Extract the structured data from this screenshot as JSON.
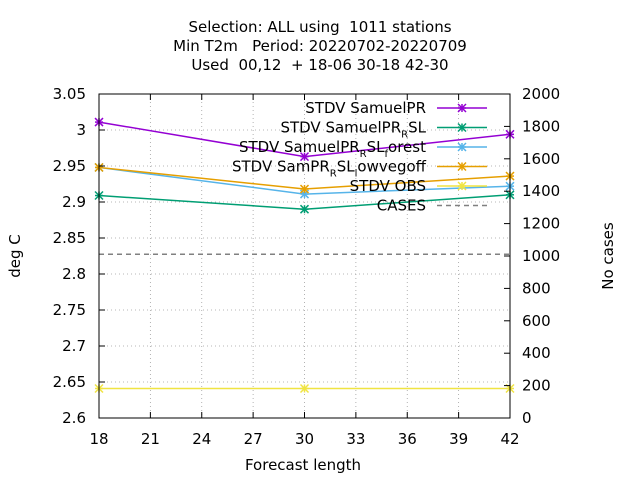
{
  "chart_data": {
    "type": "line",
    "title_lines": [
      "Selection: ALL using  1011 stations",
      "Min T2m   Period: 20220702-20220709",
      "Used  00,12  + 18-06 30-18 42-30"
    ],
    "xlabel": "Forecast length",
    "ylabel": "deg C",
    "y2label": "No cases",
    "x": [
      18,
      30,
      42
    ],
    "xlim": [
      18,
      42
    ],
    "xticks": [
      "18",
      "21",
      "24",
      "27",
      "30",
      "33",
      "36",
      "39",
      "42"
    ],
    "ylim": [
      2.6,
      3.05
    ],
    "yticks": [
      "2.6",
      "2.65",
      "2.7",
      "2.75",
      "2.8",
      "2.85",
      "2.9",
      "2.95",
      "3",
      "3.05"
    ],
    "y2lim": [
      0,
      2000
    ],
    "y2ticks": [
      "0",
      "200",
      "400",
      "600",
      "800",
      "1000",
      "1200",
      "1400",
      "1600",
      "1800",
      "2000"
    ],
    "grid": true,
    "legend_position": "top-right",
    "series": [
      {
        "name": "STDV SamuelPR",
        "name_main": "STDV SamuelPR",
        "name_sub": "",
        "name_rest": "",
        "color": "#9400d3",
        "marker": "x",
        "values": [
          3.011,
          2.963,
          2.994
        ]
      },
      {
        "name": "STDV SamuelPR_RSL",
        "name_main": "STDV SamuelPR",
        "name_sub": "R",
        "name_rest": "SL",
        "color": "#009e73",
        "marker": "x",
        "values": [
          2.909,
          2.89,
          2.91
        ]
      },
      {
        "name": "STDV SamuelPR_RSL_forest",
        "name_main": "STDV SamuelPR",
        "name_sub": "R",
        "name_rest": "SL",
        "name_sub2": "f",
        "name_rest2": "orest",
        "color": "#56b4e9",
        "marker": "x",
        "values": [
          2.948,
          2.911,
          2.922
        ]
      },
      {
        "name": "STDV SamPR_RSL_lowvegoff",
        "name_main": "STDV SamPR",
        "name_sub": "R",
        "name_rest": "SL",
        "name_sub2": "l",
        "name_rest2": "owvegoff",
        "color": "#e69f00",
        "marker": "x",
        "values": [
          2.948,
          2.918,
          2.936
        ]
      },
      {
        "name": "STDV OBS",
        "name_main": "STDV OBS",
        "name_sub": "",
        "name_rest": "",
        "color": "#f0e442",
        "marker": "x",
        "values": [
          2.641,
          2.641,
          2.641
        ]
      },
      {
        "name": "CASES",
        "name_main": "CASES",
        "name_sub": "",
        "name_rest": "",
        "color": "#808080",
        "marker": "none",
        "dashed": true,
        "axis": "y2",
        "values": [
          1011,
          1011,
          1011
        ]
      }
    ]
  }
}
